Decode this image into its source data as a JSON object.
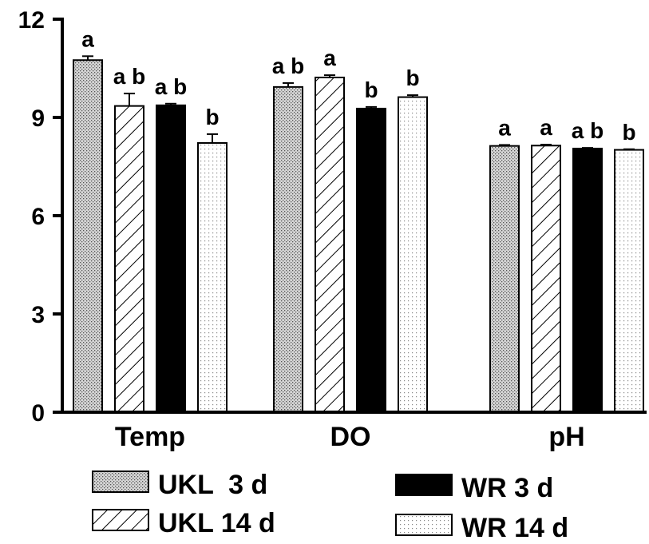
{
  "chart_data": {
    "type": "bar",
    "categories": [
      "Temp",
      "DO",
      "pH"
    ],
    "ylim": [
      0,
      12
    ],
    "yticks": [
      "0",
      "3",
      "6",
      "9",
      "12"
    ],
    "legend_position": "bottom",
    "series": [
      {
        "name": "UKL  3 d",
        "pattern": "dots-dense",
        "values": [
          10.75,
          9.93,
          8.13
        ],
        "errors": [
          0.12,
          0.12,
          0.03
        ],
        "sig": [
          "a",
          "a b",
          "a"
        ]
      },
      {
        "name": "UKL 14 d",
        "pattern": "diagonal-hatch",
        "values": [
          9.35,
          10.22,
          8.14
        ],
        "errors": [
          0.38,
          0.07,
          0.03
        ],
        "sig": [
          "a b",
          "a",
          "a"
        ]
      },
      {
        "name": "WR 3 d",
        "pattern": "solid-black",
        "values": [
          9.37,
          9.27,
          8.05
        ],
        "errors": [
          0.05,
          0.05,
          0.02
        ],
        "sig": [
          "a b",
          "b",
          "a b"
        ]
      },
      {
        "name": "WR 14 d",
        "pattern": "dots-sparse",
        "values": [
          8.22,
          9.62,
          8.01
        ],
        "errors": [
          0.27,
          0.06,
          0.02
        ],
        "sig": [
          "b",
          "b",
          "b"
        ]
      }
    ]
  }
}
